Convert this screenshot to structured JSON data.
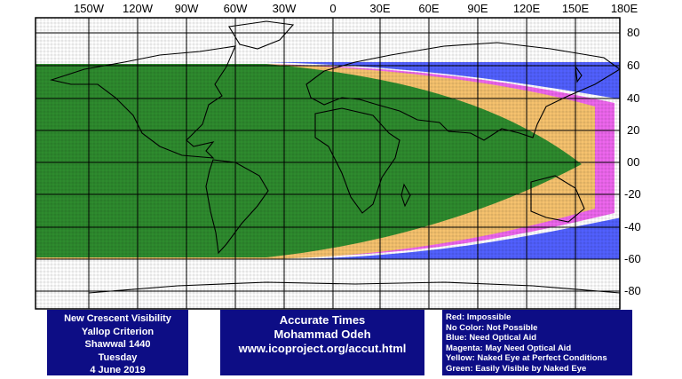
{
  "map": {
    "lon_labels": [
      "150W",
      "120W",
      "90W",
      "60W",
      "30W",
      "0",
      "30E",
      "60E",
      "90E",
      "120E",
      "150E",
      "180E"
    ],
    "lat_labels": [
      "80",
      "60",
      "40",
      "20",
      "00",
      "-20",
      "-40",
      "-60",
      "-80"
    ],
    "visibility_colors": {
      "green": "#2e8b2e",
      "yellow": "#f6c26e",
      "magenta": "#ee66ee",
      "blue": "#3344ff"
    }
  },
  "info_left": {
    "lines": [
      "New Crescent Visibility",
      "Yallop Criterion",
      "Shawwal 1440",
      "Tuesday",
      "4 June 2019"
    ]
  },
  "info_mid": {
    "lines": [
      "Accurate Times",
      "Mohammad Odeh",
      "www.icoproject.org/accut.html"
    ]
  },
  "legend": {
    "lines": [
      "Red: Impossible",
      "No Color: Not Possible",
      "Blue: Need Optical Aid",
      "Magenta: May Need Optical Aid",
      "Yellow: Naked Eye at Perfect Conditions",
      "Green: Easily Visible by Naked Eye"
    ]
  }
}
